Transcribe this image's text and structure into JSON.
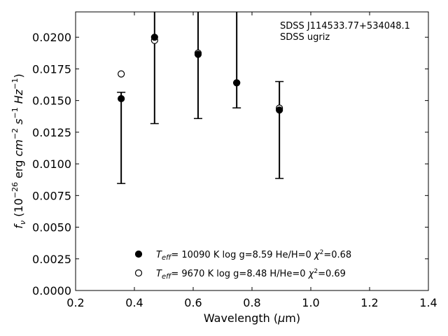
{
  "chart_data": {
    "type": "scatter",
    "xlabel": "Wavelength (μm)",
    "ylabel": "f_ν (10^-26 erg cm^-2 s^-1 Hz^-1)",
    "xlim": [
      0.2,
      1.4
    ],
    "ylim": [
      0.0,
      0.022
    ],
    "x_ticks": [
      "0.2",
      "0.4",
      "0.6",
      "0.8",
      "1.0",
      "1.2",
      "1.4"
    ],
    "y_ticks": [
      "0.0000",
      "0.0025",
      "0.0050",
      "0.0075",
      "0.0100",
      "0.0125",
      "0.0150",
      "0.0175",
      "0.0200"
    ],
    "annotation": [
      "SDSS J114533.77+534048.1",
      "SDSS ugriz"
    ],
    "legend_position": "lower-center",
    "grid": false,
    "observed": {
      "x": [
        0.3551,
        0.4686,
        0.6166,
        0.748,
        0.8932
      ],
      "y": [
        0.01515,
        0.02,
        0.01865,
        0.0164,
        0.01425
      ],
      "yerr_low": [
        0.00845,
        0.01318,
        0.01358,
        0.01442,
        0.00885
      ],
      "yerr_high": [
        0.01565,
        0.024,
        0.024,
        0.024,
        0.0165
      ]
    },
    "models": [
      {
        "name": "Teff= 10090 K  log g=8.59  He/H=0  χ²=0.68",
        "marker": "filled-circle",
        "x": [
          0.3551,
          0.4686,
          0.6166,
          0.748,
          0.8932
        ],
        "y": [
          0.01515,
          0.02,
          0.01865,
          0.0164,
          0.01425
        ]
      },
      {
        "name": "Teff=  9670 K  log g=8.48  H/He=0  χ²=0.69",
        "marker": "open-circle",
        "x": [
          0.3551,
          0.4686,
          0.6166,
          0.748,
          0.8932
        ],
        "y": [
          0.0171,
          0.01975,
          0.01875,
          0.0164,
          0.0144
        ]
      }
    ]
  }
}
